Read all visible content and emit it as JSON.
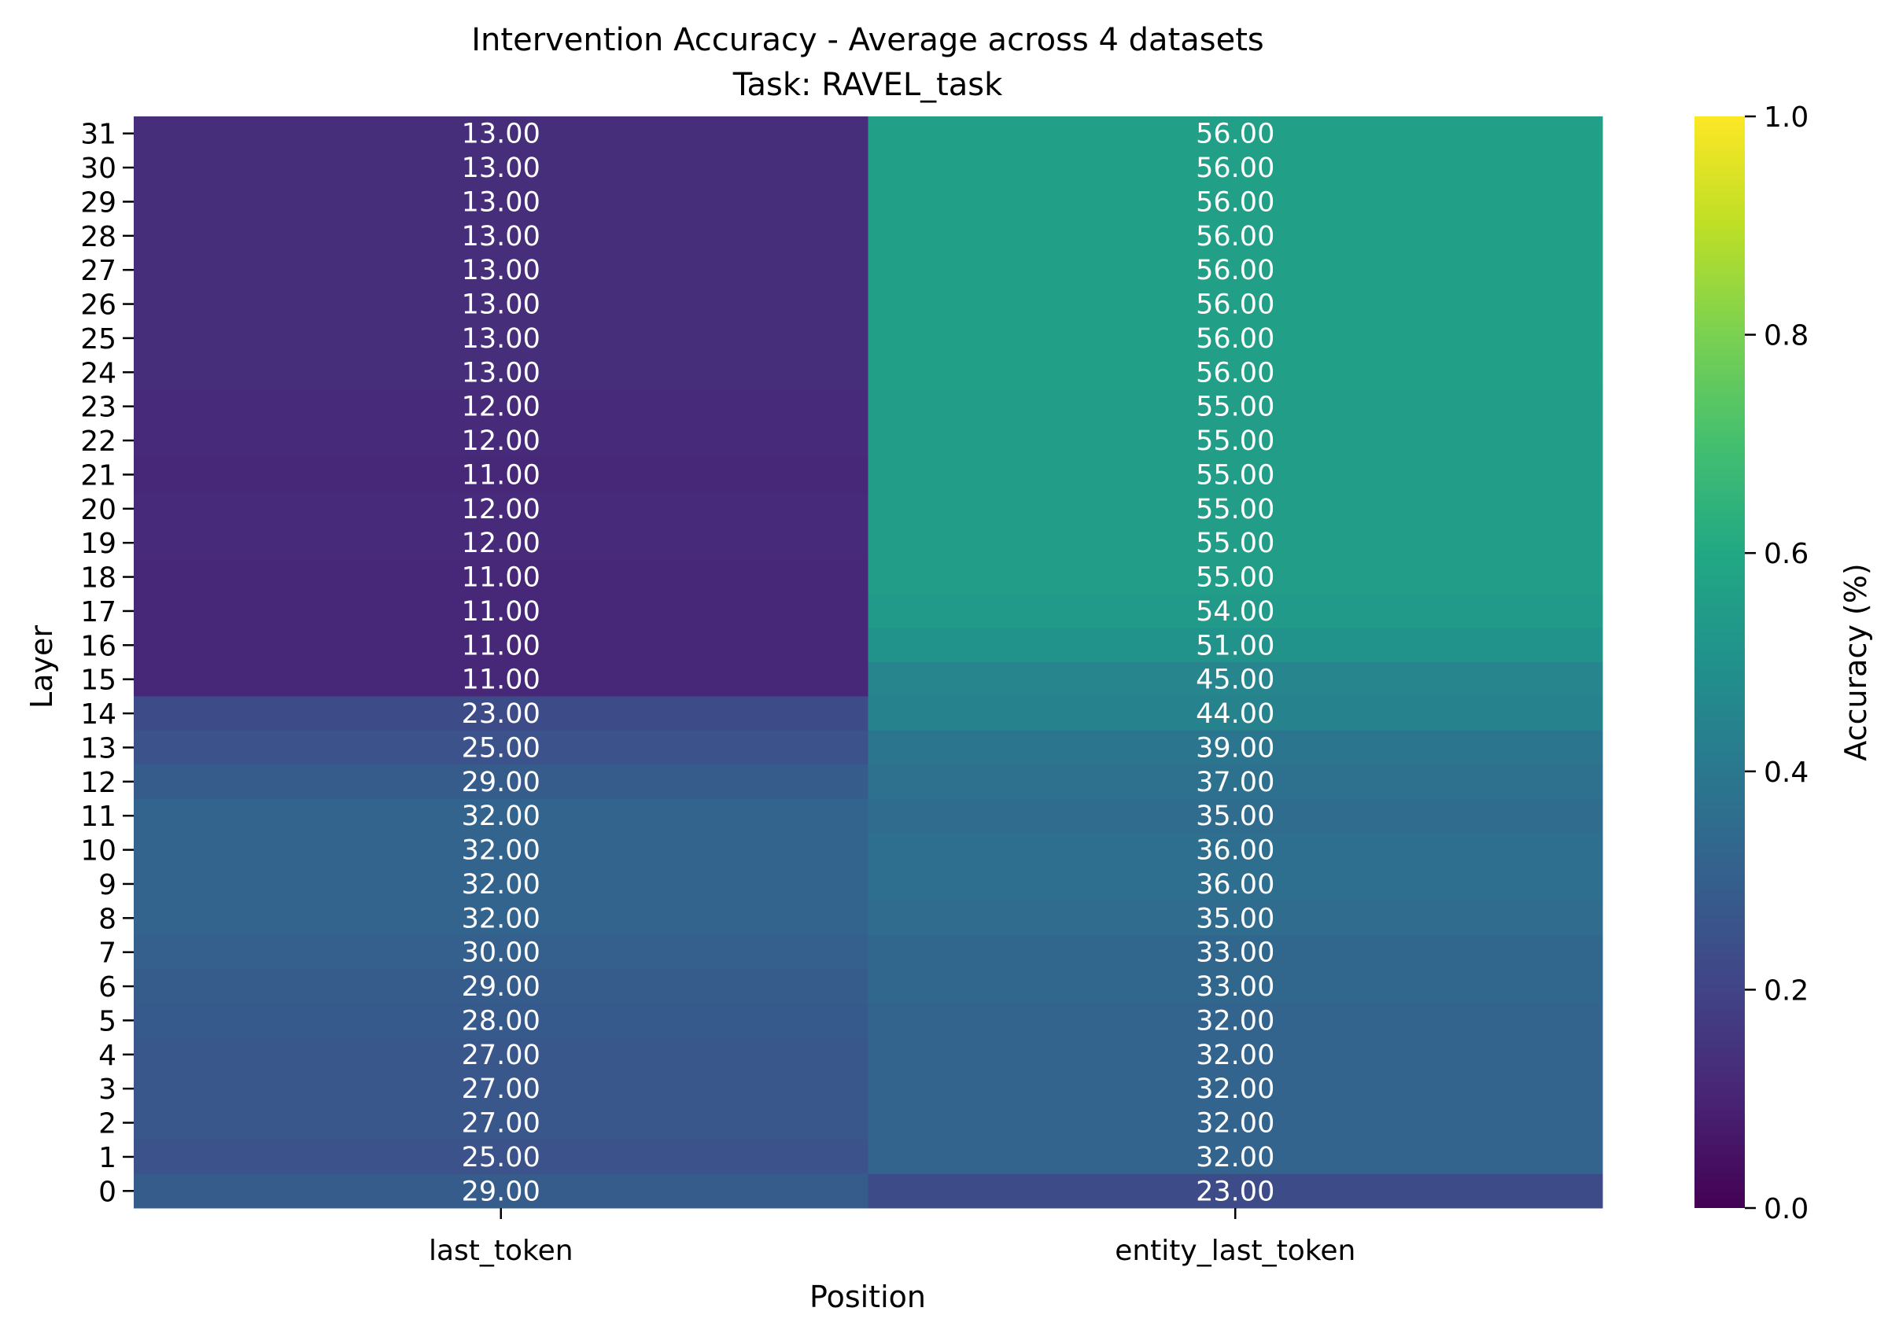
{
  "chart_data": {
    "type": "heatmap",
    "title": "Intervention Accuracy - Average across 4 datasets",
    "subtitle": "Task: RAVEL_task",
    "xlabel": "Position",
    "ylabel": "Layer",
    "x_categories": [
      "last_token",
      "entity_last_token"
    ],
    "y_categories": [
      "31",
      "30",
      "29",
      "28",
      "27",
      "26",
      "25",
      "24",
      "23",
      "22",
      "21",
      "20",
      "19",
      "18",
      "17",
      "16",
      "15",
      "14",
      "13",
      "12",
      "11",
      "10",
      "9",
      "8",
      "7",
      "6",
      "5",
      "4",
      "3",
      "2",
      "1",
      "0"
    ],
    "values": [
      [
        13.0,
        56.0
      ],
      [
        13.0,
        56.0
      ],
      [
        13.0,
        56.0
      ],
      [
        13.0,
        56.0
      ],
      [
        13.0,
        56.0
      ],
      [
        13.0,
        56.0
      ],
      [
        13.0,
        56.0
      ],
      [
        13.0,
        56.0
      ],
      [
        12.0,
        55.0
      ],
      [
        12.0,
        55.0
      ],
      [
        11.0,
        55.0
      ],
      [
        12.0,
        55.0
      ],
      [
        12.0,
        55.0
      ],
      [
        11.0,
        55.0
      ],
      [
        11.0,
        54.0
      ],
      [
        11.0,
        51.0
      ],
      [
        11.0,
        45.0
      ],
      [
        23.0,
        44.0
      ],
      [
        25.0,
        39.0
      ],
      [
        29.0,
        37.0
      ],
      [
        32.0,
        35.0
      ],
      [
        32.0,
        36.0
      ],
      [
        32.0,
        36.0
      ],
      [
        32.0,
        35.0
      ],
      [
        30.0,
        33.0
      ],
      [
        29.0,
        33.0
      ],
      [
        28.0,
        32.0
      ],
      [
        27.0,
        32.0
      ],
      [
        27.0,
        32.0
      ],
      [
        27.0,
        32.0
      ],
      [
        25.0,
        32.0
      ],
      [
        29.0,
        23.0
      ]
    ],
    "value_format": "0.00",
    "colormap": "viridis",
    "color_scale_max_value": 100,
    "colorbar": {
      "label": "Accuracy (%)",
      "range": [
        0.0,
        1.0
      ],
      "ticks": [
        "0.0",
        "0.2",
        "0.4",
        "0.6",
        "0.8",
        "1.0"
      ]
    },
    "grid": false
  }
}
